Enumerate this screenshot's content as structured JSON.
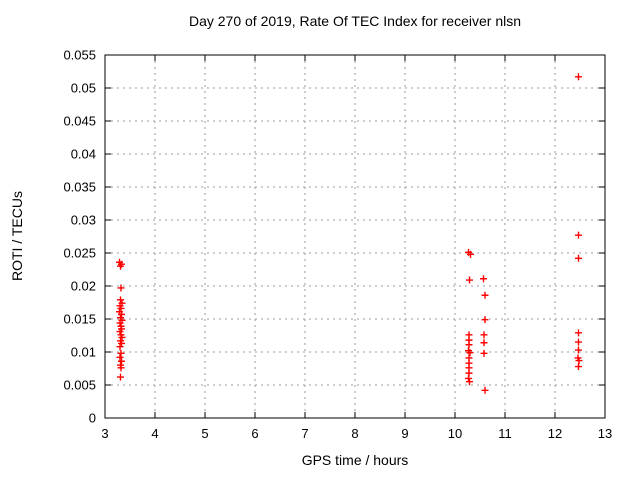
{
  "chart_data": {
    "type": "scatter",
    "title": "Day 270 of 2019, Rate Of TEC Index for receiver nlsn",
    "xlabel": "GPS time / hours",
    "ylabel": "ROTI / TECUs",
    "xlim": [
      3,
      13
    ],
    "ylim": [
      0,
      0.055
    ],
    "xticks": [
      3,
      4,
      5,
      6,
      7,
      8,
      9,
      10,
      11,
      12,
      13
    ],
    "xtick_labels": [
      "3",
      "4",
      "5",
      "6",
      "7",
      "8",
      "9",
      "10",
      "11",
      "12",
      "13"
    ],
    "yticks": [
      0,
      0.005,
      0.01,
      0.015,
      0.02,
      0.025,
      0.03,
      0.035,
      0.04,
      0.045,
      0.05,
      0.055
    ],
    "ytick_labels": [
      "0",
      "0.005",
      "0.01",
      "0.015",
      "0.02",
      "0.025",
      "0.03",
      "0.035",
      "0.04",
      "0.045",
      "0.05",
      "0.055"
    ],
    "grid": true,
    "legend_position": "none",
    "marker": {
      "shape": "plus",
      "color": "#ff0000",
      "size": 7,
      "stroke_width": 1.4
    },
    "colors": {
      "background": "#ffffff",
      "border": "#000000",
      "grid": "#9b9b9b",
      "text": "#000000",
      "series": "#ff0000"
    },
    "series": [
      {
        "name": "ROTI",
        "points": [
          [
            3.29,
            0.0236
          ],
          [
            3.33,
            0.0233
          ],
          [
            3.31,
            0.023
          ],
          [
            3.32,
            0.0197
          ],
          [
            3.31,
            0.0179
          ],
          [
            3.34,
            0.0174
          ],
          [
            3.3,
            0.017
          ],
          [
            3.32,
            0.0166
          ],
          [
            3.29,
            0.0161
          ],
          [
            3.33,
            0.0157
          ],
          [
            3.31,
            0.0152
          ],
          [
            3.34,
            0.0148
          ],
          [
            3.3,
            0.0144
          ],
          [
            3.32,
            0.0139
          ],
          [
            3.33,
            0.0135
          ],
          [
            3.3,
            0.0131
          ],
          [
            3.32,
            0.0126
          ],
          [
            3.34,
            0.0122
          ],
          [
            3.31,
            0.0117
          ],
          [
            3.33,
            0.0113
          ],
          [
            3.3,
            0.0108
          ],
          [
            3.32,
            0.0098
          ],
          [
            3.3,
            0.0092
          ],
          [
            3.33,
            0.0086
          ],
          [
            3.31,
            0.008
          ],
          [
            3.32,
            0.0076
          ],
          [
            3.31,
            0.0062
          ],
          [
            10.27,
            0.0251
          ],
          [
            10.31,
            0.0248
          ],
          [
            10.29,
            0.0209
          ],
          [
            10.28,
            0.0126
          ],
          [
            10.28,
            0.0118
          ],
          [
            10.28,
            0.0111
          ],
          [
            10.27,
            0.0102
          ],
          [
            10.3,
            0.0099
          ],
          [
            10.28,
            0.0091
          ],
          [
            10.28,
            0.0083
          ],
          [
            10.28,
            0.0076
          ],
          [
            10.28,
            0.0068
          ],
          [
            10.27,
            0.006
          ],
          [
            10.29,
            0.0055
          ],
          [
            10.57,
            0.0211
          ],
          [
            10.6,
            0.0186
          ],
          [
            10.6,
            0.0149
          ],
          [
            10.58,
            0.0126
          ],
          [
            10.58,
            0.0114
          ],
          [
            10.58,
            0.0098
          ],
          [
            10.6,
            0.0042
          ],
          [
            12.47,
            0.0517
          ],
          [
            12.47,
            0.0277
          ],
          [
            12.47,
            0.0242
          ],
          [
            12.47,
            0.0129
          ],
          [
            12.47,
            0.0115
          ],
          [
            12.47,
            0.0103
          ],
          [
            12.46,
            0.0091
          ],
          [
            12.48,
            0.0087
          ],
          [
            12.47,
            0.0078
          ]
        ]
      }
    ]
  }
}
